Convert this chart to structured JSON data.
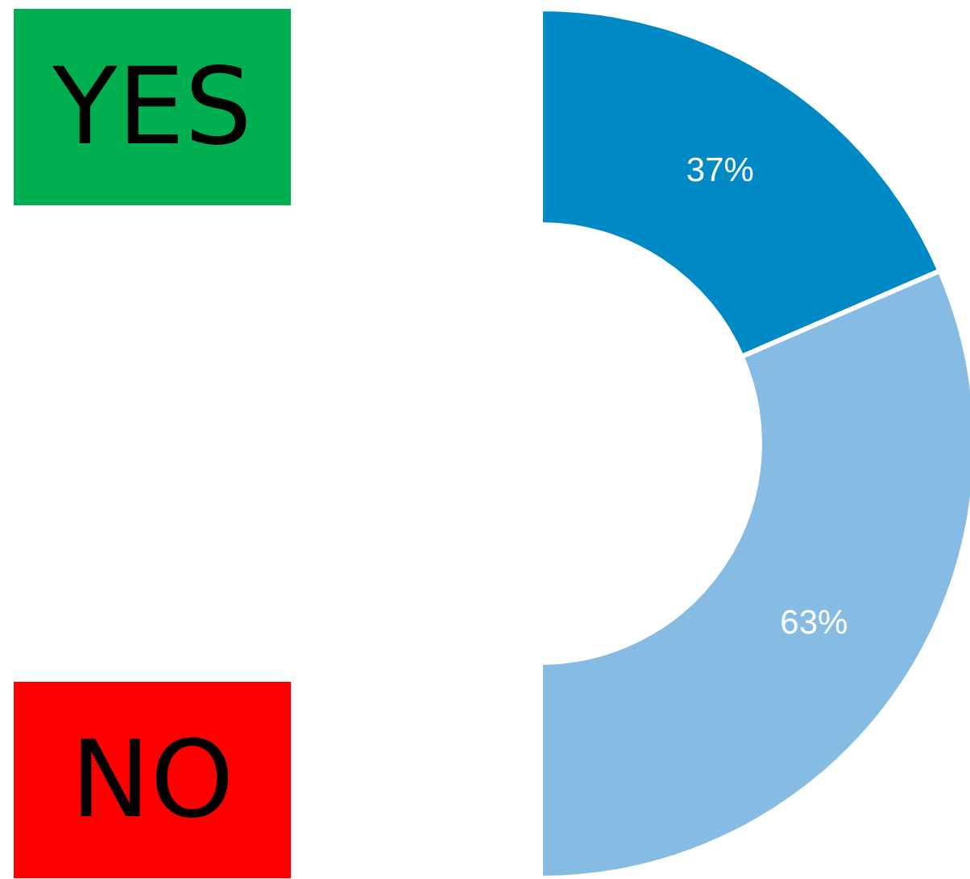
{
  "chart_data": {
    "type": "donut",
    "categories": [
      null,
      null
    ],
    "values": [
      37,
      63
    ],
    "colors": [
      "#008ac5",
      "#86bce4"
    ],
    "value_labels": [
      "37%",
      "63%"
    ],
    "annotations": [
      "YES",
      "NO"
    ]
  }
}
